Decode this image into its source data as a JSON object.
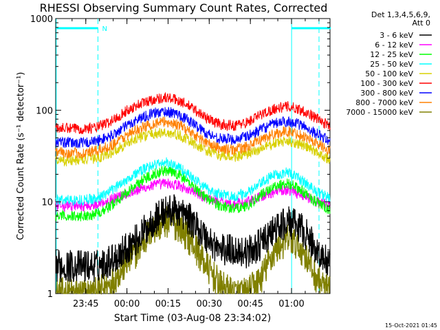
{
  "chart_data": {
    "type": "line",
    "title": "RHESSI Observing Summary Count Rates, Corrected",
    "xlabel": "Start Time (03-Aug-08 23:34:02)",
    "ylabel": "Corrected Count Rate (s⁻¹ detector⁻¹)",
    "y_scale": "log",
    "ylim": [
      1,
      1000
    ],
    "y_ticks": [
      {
        "value": 1,
        "label": "1"
      },
      {
        "value": 10,
        "label": "10"
      },
      {
        "value": 100,
        "label": "100"
      },
      {
        "value": 1000,
        "label": "1000"
      }
    ],
    "x_unit": "minutes after 23:34:02",
    "xlim": [
      0,
      100
    ],
    "x_ticks": [
      {
        "value": 10.97,
        "label": "23:45"
      },
      {
        "value": 25.97,
        "label": "00:00"
      },
      {
        "value": 40.97,
        "label": "00:15"
      },
      {
        "value": 55.97,
        "label": "00:30"
      },
      {
        "value": 70.97,
        "label": "00:45"
      },
      {
        "value": 85.97,
        "label": "01:00"
      }
    ],
    "legend": {
      "header": [
        "Det 1,3,4,5,6,9,",
        "Att 0"
      ],
      "placement": "right"
    },
    "markers": {
      "vertical_lines_solid": [
        0.2,
        86.0
      ],
      "vertical_lines_dashed": [
        15.4,
        100.8
      ],
      "flag_bars": [
        {
          "label": "N",
          "x_start": 0.4,
          "x_end": 15.4
        },
        {
          "label": "",
          "x_start": 86.0,
          "x_end": 100.3
        }
      ]
    },
    "x": [
      0,
      5,
      10,
      15,
      20,
      25,
      30,
      35,
      40,
      45,
      50,
      55,
      60,
      65,
      70,
      75,
      80,
      85,
      90,
      95,
      100
    ],
    "series": [
      {
        "name": "3 - 6 keV",
        "color": "#000000",
        "values": [
          2,
          2,
          2,
          2,
          2.3,
          3,
          4,
          6,
          8,
          8,
          6,
          4,
          3,
          3,
          2.8,
          3.5,
          5,
          6,
          5,
          3,
          2
        ]
      },
      {
        "name": "6 - 12 keV",
        "color": "#ff00ff",
        "values": [
          9,
          9,
          9,
          9.5,
          10.5,
          12,
          13.5,
          15,
          16,
          15,
          13,
          11,
          10,
          9.5,
          10,
          11.5,
          13,
          13.5,
          12,
          10,
          9
        ]
      },
      {
        "name": "12 - 25 keV",
        "color": "#00ff00",
        "values": [
          7,
          7,
          7,
          7.5,
          9,
          12,
          16,
          20,
          22,
          20,
          15,
          11,
          9,
          8.5,
          9,
          12,
          15,
          16,
          13,
          10,
          8
        ]
      },
      {
        "name": "25 - 50 keV",
        "color": "#00ffff",
        "values": [
          10.5,
          10.5,
          10.5,
          11,
          13,
          17,
          21,
          25,
          27,
          24,
          18,
          14,
          12,
          11.5,
          12.5,
          16,
          20,
          21,
          17,
          13,
          11
        ]
      },
      {
        "name": "50 - 100 keV",
        "color": "#d8d000",
        "values": [
          28,
          28,
          29,
          30,
          34,
          42,
          50,
          55,
          57,
          53,
          44,
          36,
          32,
          31,
          33,
          38,
          44,
          46,
          42,
          35,
          29
        ]
      },
      {
        "name": "100 - 300 keV",
        "color": "#ff0000",
        "values": [
          64,
          63,
          63,
          65,
          75,
          95,
          115,
          130,
          138,
          128,
          105,
          82,
          70,
          68,
          74,
          90,
          105,
          110,
          100,
          82,
          66
        ]
      },
      {
        "name": "300 - 800 keV",
        "color": "#0000ff",
        "values": [
          45,
          44,
          44,
          46,
          52,
          65,
          80,
          92,
          97,
          90,
          72,
          56,
          49,
          48,
          52,
          62,
          72,
          76,
          68,
          56,
          46
        ]
      },
      {
        "name": "800 - 7000 keV",
        "color": "#ff8000",
        "values": [
          35,
          34,
          34,
          36,
          41,
          51,
          62,
          71,
          75,
          69,
          56,
          44,
          38,
          37,
          40,
          48,
          56,
          59,
          53,
          44,
          36
        ]
      },
      {
        "name": "7000 - 15000 keV",
        "color": "#808000",
        "values": [
          1,
          1,
          1,
          1,
          1.3,
          2,
          3,
          5,
          6,
          5.5,
          3.5,
          2,
          1.2,
          1,
          1,
          1.5,
          3,
          4,
          3,
          1.5,
          1
        ]
      }
    ]
  },
  "footer": {
    "timestamp": "15-Oct-2021 01:45"
  }
}
